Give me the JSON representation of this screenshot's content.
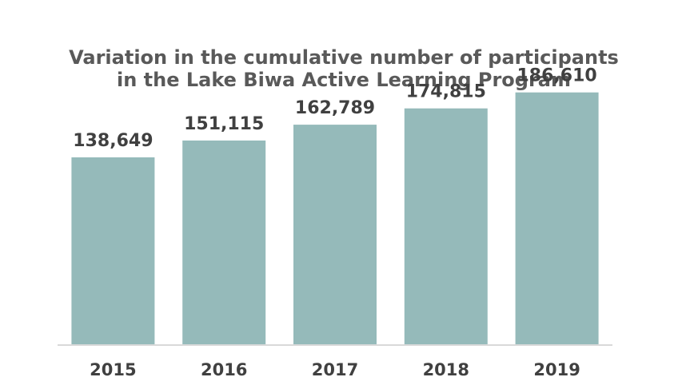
{
  "chart_data": {
    "type": "bar",
    "title_lines": [
      "Variation in the cumulative number of participants",
      "in the Lake Biwa Active Learning Program"
    ],
    "categories": [
      "2015",
      "2016",
      "2017",
      "2018",
      "2019"
    ],
    "values": [
      138649,
      151115,
      162789,
      174815,
      186610
    ],
    "value_labels": [
      "138,649",
      "151,115",
      "162,789",
      "174,815",
      "186,610"
    ],
    "xlabel": "",
    "ylabel": "",
    "ylim": [
      0,
      200000
    ],
    "grid": false,
    "legend": "none",
    "colors": {
      "bar": "#95BABA",
      "axis": "#D9D9D9",
      "title": "#595959",
      "labels": "#404040"
    }
  }
}
